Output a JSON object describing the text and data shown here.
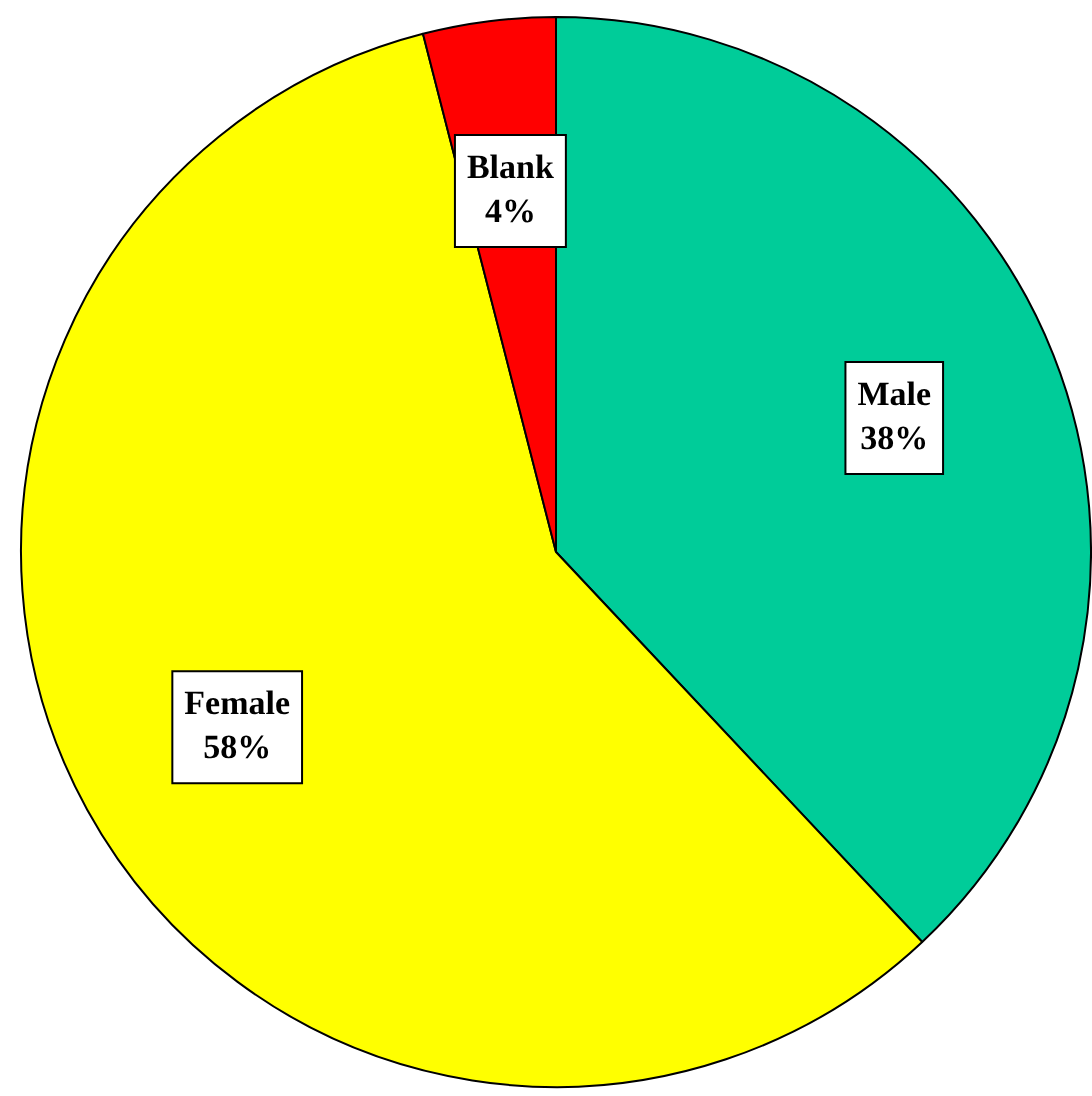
{
  "chart_data": {
    "type": "pie",
    "categories": [
      "Male",
      "Female",
      "Blank"
    ],
    "values": [
      38,
      58,
      4
    ],
    "colors": [
      "#00cc99",
      "#ffff00",
      "#ff0000"
    ],
    "value_labels": [
      "38%",
      "58%",
      "4%"
    ],
    "legend": false
  }
}
